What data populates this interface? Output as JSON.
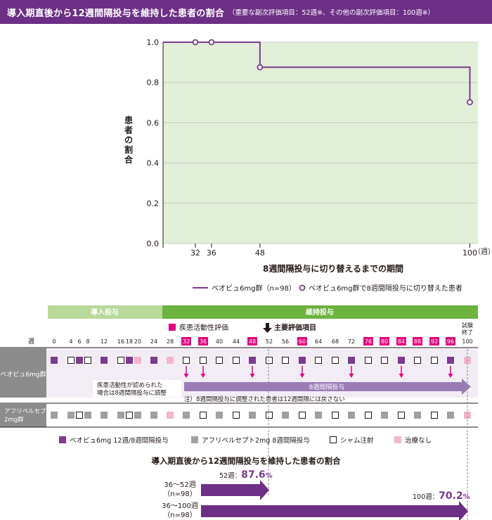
{
  "header": {
    "title": "導入期直後から12週間隔投与を維持した患者の割合",
    "subtitle": "（重要な副次評価項目：52週※、その他の副次評価項目：100週※）"
  },
  "chart_data": {
    "type": "line",
    "step": true,
    "ylabel": "患者の割合",
    "xlabel": "8週間隔投与に切り替えるまでの期間",
    "x_unit": "（週）",
    "ylim": [
      0,
      1.0
    ],
    "yticks": [
      "0.0",
      "0.2",
      "0.4",
      "0.6",
      "0.8",
      "1.0"
    ],
    "xlim": [
      24,
      102
    ],
    "xticks": [
      "32",
      "36",
      "48",
      "100"
    ],
    "colors": {
      "line": "#7b3b8f",
      "area": "#e2efd9",
      "grid": "#c9c9c9"
    },
    "series": [
      {
        "name": "ベオビュ6mg群（n=98）",
        "x": [
          24,
          32,
          36,
          48,
          100
        ],
        "y": [
          1.0,
          1.0,
          1.0,
          0.876,
          0.702
        ]
      }
    ],
    "markers": {
      "name": "ベオビュ6mg群で8週間隔投与に切り替えた患者",
      "points": [
        [
          32,
          1.0
        ],
        [
          36,
          1.0
        ],
        [
          48,
          0.876
        ],
        [
          100,
          0.702
        ]
      ]
    }
  },
  "schedule": {
    "phase_induction": "導入投与",
    "phase_maintenance": "維持投与",
    "assessment_label": "疾患活動性評価",
    "primary_label": "主要評価項目",
    "week_label": "週",
    "end_label_1": "試験",
    "end_label_2": "終了",
    "weeks": [
      "0",
      "4",
      "6",
      "8",
      "12",
      "16",
      "18",
      "20",
      "24",
      "28",
      "32",
      "36",
      "40",
      "44",
      "48",
      "52",
      "56",
      "60",
      "64",
      "68",
      "72",
      "76",
      "80",
      "84",
      "88",
      "92",
      "96",
      "100"
    ],
    "assessment_weeks": [
      "32",
      "36",
      "48",
      "60",
      "76",
      "80",
      "84",
      "88",
      "92",
      "96"
    ],
    "group1_label": "ベオビュ6mg群",
    "group2_label_1": "アフリベルセプト",
    "group2_label_2": "2mg群",
    "note_1": "疾患活動性が認められた",
    "note_2": "場合は8週間隔投与に調整",
    "arrow_label": "8週間隔投与",
    "footnote": "注）8週間隔投与に調整された患者は12週間隔には戻さない"
  },
  "legend2": {
    "beovu": "ベオビュ6mg 12週/8週間隔投与",
    "aflib": "アフリベルセプト2mg 8週間隔投与",
    "sham": "シャム注射",
    "none": "治療なし"
  },
  "summary": {
    "title": "導入期直後から12週間隔投与を維持した患者の割合",
    "row1_label": "36～52週",
    "row1_n": "（n=98）",
    "row1_prefix": "52週：",
    "row1_value": "87.6",
    "row2_label": "36～100週",
    "row2_n": "（n=98）",
    "row2_prefix": "100週：",
    "row2_value": "70.2",
    "percent": "%"
  }
}
